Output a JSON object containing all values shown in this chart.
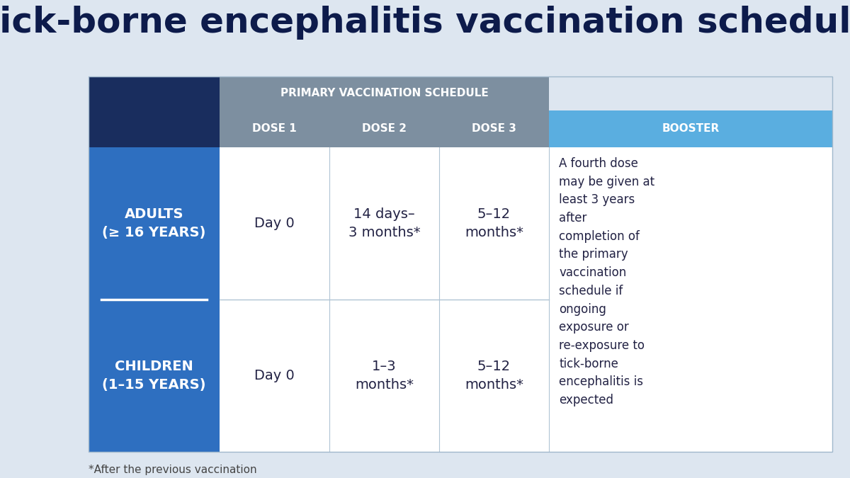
{
  "title": "Tick-borne encephalitis vaccination schedule",
  "title_color": "#0d1b4b",
  "background_color": "#dde6f0",
  "header1_bg": "#7d8fa0",
  "header1_text": "PRIMARY VACCINATION SCHEDULE",
  "header2_bg": "#7d8fa0",
  "dose_headers": [
    "DOSE 1",
    "DOSE 2",
    "DOSE 3"
  ],
  "booster_header": "BOOSTER",
  "booster_header_bg": "#5aaee0",
  "row_header_bg_top": "#192d5e",
  "row_header_bg_bottom": "#2e6fc0",
  "adults_label": "ADULTS\n(≥ 16 YEARS)",
  "children_label": "CHILDREN\n(1–15 YEARS)",
  "adults_dose1": "Day 0",
  "adults_dose2": "14 days–\n3 months*",
  "adults_dose3": "5–12\nmonths*",
  "children_dose1": "Day 0",
  "children_dose2": "1–3\nmonths*",
  "children_dose3": "5–12\nmonths*",
  "booster_text": "A fourth dose\nmay be given at\nleast 3 years\nafter\ncompletion of\nthe primary\nvaccination\nschedule if\nongoing\nexposure or\nre-exposure to\ntick-borne\nencephalitis is\nexpected",
  "footnote": "*After the previous vaccination",
  "divider_color": "#b0c4d4",
  "cell_text_color": "#222244",
  "booster_text_color": "#222244",
  "header_text_color": "#ffffff",
  "row_label_text_color": "#ffffff",
  "white_divider_color": "#ffffff"
}
